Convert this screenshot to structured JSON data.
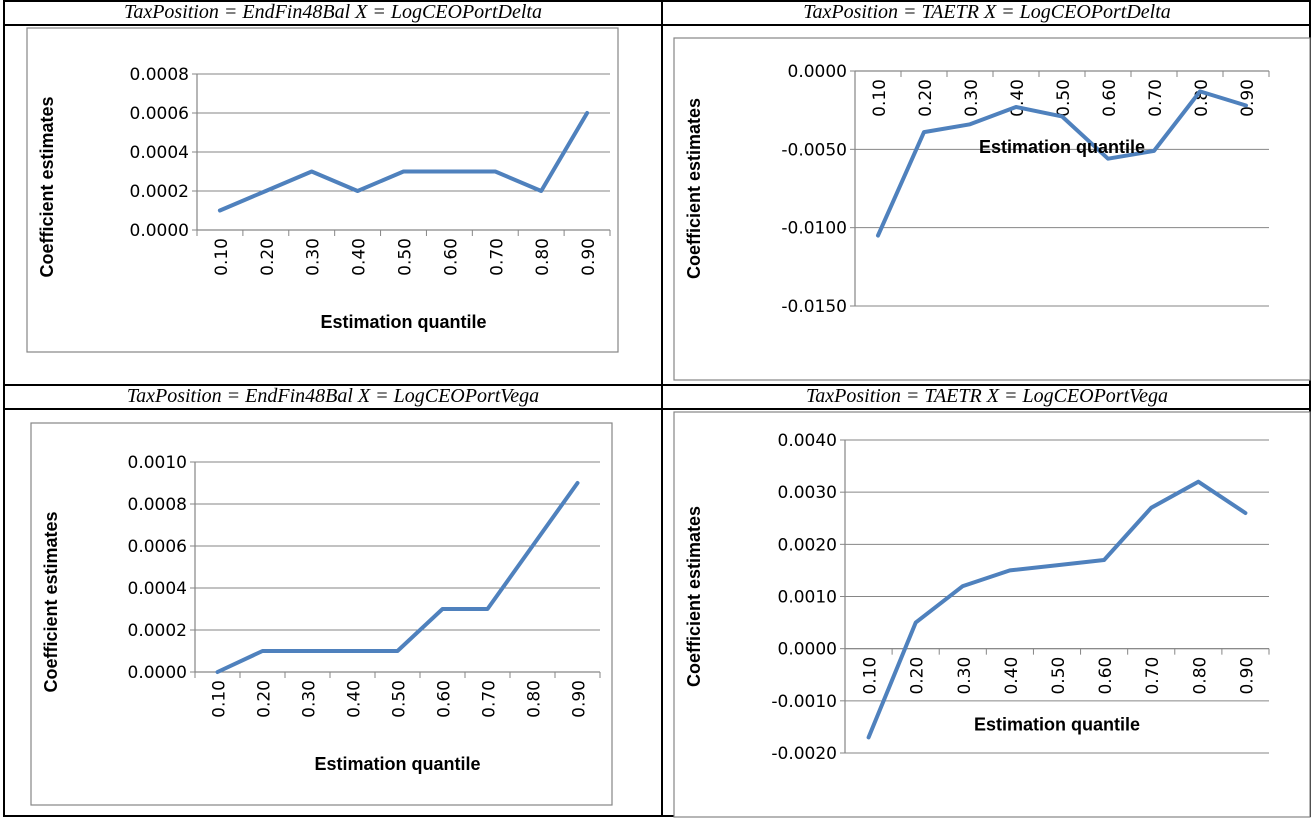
{
  "chart_data": [
    {
      "panel_title": "TaxPosition = EndFin48Bal  X = LogCEOPortDelta",
      "type": "line",
      "categories": [
        "0.10",
        "0.20",
        "0.30",
        "0.40",
        "0.50",
        "0.60",
        "0.70",
        "0.80",
        "0.90"
      ],
      "values": [
        0.0001,
        0.0002,
        0.0003,
        0.0002,
        0.0003,
        0.0003,
        0.0003,
        0.0002,
        0.0006
      ],
      "yticks": [
        "0.0000",
        "0.0002",
        "0.0004",
        "0.0006",
        "0.0008"
      ],
      "ylim": [
        0,
        0.0008
      ],
      "xlabel": "Estimation quantile",
      "ylabel": "Coefficient estimates",
      "x_axis_at": "bottom",
      "line_color": "#4F81BD",
      "grid": true
    },
    {
      "panel_title": "TaxPosition = TAETR  X = LogCEOPortDelta",
      "type": "line",
      "categories": [
        "0.10",
        "0.20",
        "0.30",
        "0.40",
        "0.50",
        "0.60",
        "0.70",
        "0.80",
        "0.90"
      ],
      "values": [
        -0.0105,
        -0.0039,
        -0.0034,
        -0.0023,
        -0.0029,
        -0.0056,
        -0.0051,
        -0.0013,
        -0.0022
      ],
      "yticks": [
        "-0.0150",
        "-0.0100",
        "-0.0050",
        "0.0000"
      ],
      "ylim": [
        -0.015,
        0.0
      ],
      "xlabel": "Estimation quantile",
      "ylabel": "Coefficient estimates",
      "x_axis_at": "zero",
      "line_color": "#4F81BD",
      "grid": true
    },
    {
      "panel_title": "TaxPosition = EndFin48Bal  X = LogCEOPortVega",
      "type": "line",
      "categories": [
        "0.10",
        "0.20",
        "0.30",
        "0.40",
        "0.50",
        "0.60",
        "0.70",
        "0.80",
        "0.90"
      ],
      "values": [
        0.0,
        0.0001,
        0.0001,
        0.0001,
        0.0001,
        0.0003,
        0.0003,
        0.0006,
        0.0009
      ],
      "yticks": [
        "0.0000",
        "0.0002",
        "0.0004",
        "0.0006",
        "0.0008",
        "0.0010"
      ],
      "ylim": [
        0,
        0.001
      ],
      "xlabel": "Estimation quantile",
      "ylabel": "Coefficient estimates",
      "x_axis_at": "bottom",
      "line_color": "#4F81BD",
      "grid": true
    },
    {
      "panel_title": "TaxPosition = TAETR  X = LogCEOPortVega",
      "type": "line",
      "categories": [
        "0.10",
        "0.20",
        "0.30",
        "0.40",
        "0.50",
        "0.60",
        "0.70",
        "0.80",
        "0.90"
      ],
      "values": [
        -0.0017,
        0.0005,
        0.0012,
        0.0015,
        0.0016,
        0.0017,
        0.0027,
        0.0032,
        0.0026
      ],
      "yticks": [
        "-0.0020",
        "-0.0010",
        "0.0000",
        "0.0010",
        "0.0020",
        "0.0030",
        "0.0040"
      ],
      "ylim": [
        -0.002,
        0.004
      ],
      "xlabel": "Estimation quantile",
      "ylabel": "Coefficient estimates",
      "x_axis_at": "zero",
      "line_color": "#4F81BD",
      "grid": true
    }
  ]
}
